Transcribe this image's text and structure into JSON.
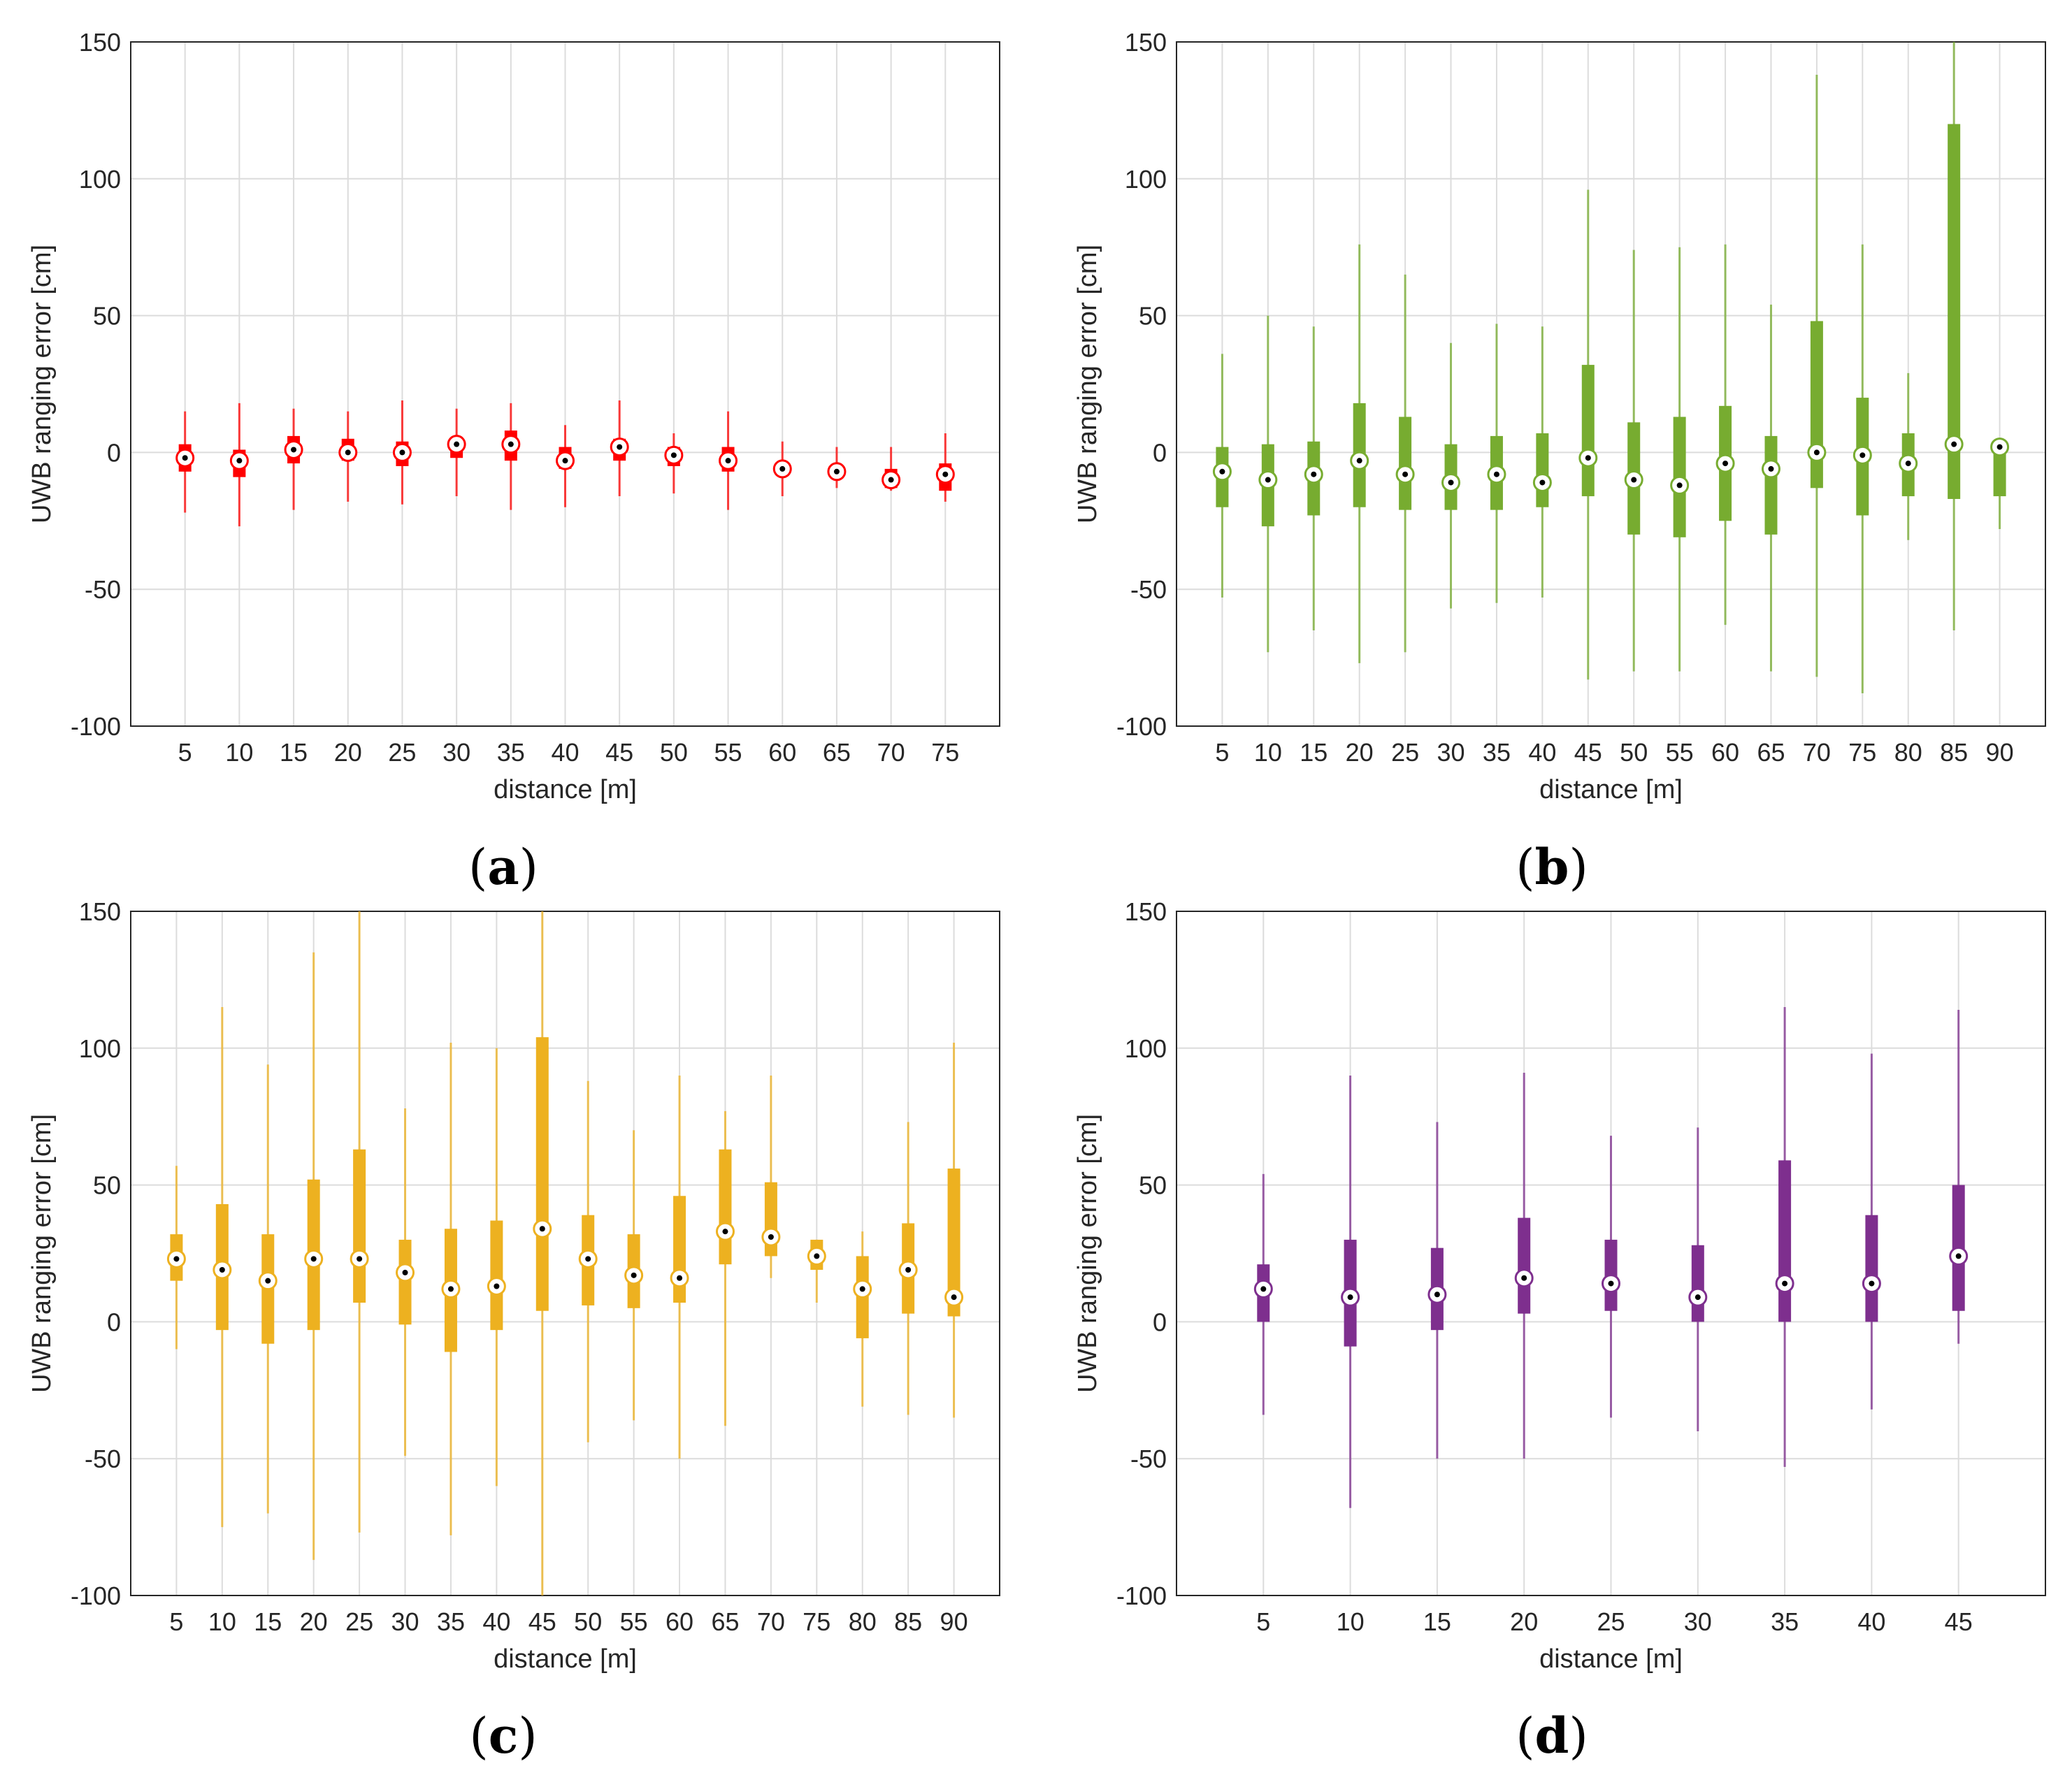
{
  "chart_data": [
    {
      "id": "a",
      "caption": "a",
      "type": "boxplot",
      "color": "#ff0000",
      "xlabel": "distance [m]",
      "ylabel": "UWB ranging error [cm]",
      "ylim": [
        -100,
        150
      ],
      "yticks": [
        -100,
        -50,
        0,
        50,
        100,
        150
      ],
      "grid": true,
      "boxes": [
        {
          "x": "5",
          "min": -22,
          "q1": -7,
          "median": -2,
          "q3": 3,
          "max": 15
        },
        {
          "x": "10",
          "min": -27,
          "q1": -9,
          "median": -3,
          "q3": 1,
          "max": 18
        },
        {
          "x": "15",
          "min": -21,
          "q1": -4,
          "median": 1,
          "q3": 6,
          "max": 16
        },
        {
          "x": "20",
          "min": -18,
          "q1": -3,
          "median": 0,
          "q3": 5,
          "max": 15
        },
        {
          "x": "25",
          "min": -19,
          "q1": -5,
          "median": 0,
          "q3": 4,
          "max": 19
        },
        {
          "x": "30",
          "min": -16,
          "q1": -2,
          "median": 3,
          "q3": 5,
          "max": 16
        },
        {
          "x": "35",
          "min": -21,
          "q1": -3,
          "median": 3,
          "q3": 8,
          "max": 18
        },
        {
          "x": "40",
          "min": -20,
          "q1": -6,
          "median": -3,
          "q3": 2,
          "max": 10
        },
        {
          "x": "45",
          "min": -16,
          "q1": -3,
          "median": 2,
          "q3": 5,
          "max": 19
        },
        {
          "x": "50",
          "min": -15,
          "q1": -5,
          "median": -1,
          "q3": 2,
          "max": 7
        },
        {
          "x": "55",
          "min": -21,
          "q1": -7,
          "median": -3,
          "q3": 2,
          "max": 15
        },
        {
          "x": "60",
          "min": -16,
          "q1": -8,
          "median": -6,
          "q3": -4,
          "max": 4
        },
        {
          "x": "65",
          "min": -13,
          "q1": -9,
          "median": -7,
          "q3": -5,
          "max": 2
        },
        {
          "x": "70",
          "min": -14,
          "q1": -13,
          "median": -10,
          "q3": -6,
          "max": 2
        },
        {
          "x": "75",
          "min": -18,
          "q1": -14,
          "median": -8,
          "q3": -4,
          "max": 7
        }
      ]
    },
    {
      "id": "b",
      "caption": "b",
      "type": "boxplot",
      "color": "#77ac30",
      "xlabel": "distance [m]",
      "ylabel": "UWB ranging error [cm]",
      "ylim": [
        -100,
        150
      ],
      "yticks": [
        -100,
        -50,
        0,
        50,
        100,
        150
      ],
      "grid": true,
      "boxes": [
        {
          "x": "5",
          "min": -53,
          "q1": -20,
          "median": -7,
          "q3": 2,
          "max": 36
        },
        {
          "x": "10",
          "min": -73,
          "q1": -27,
          "median": -10,
          "q3": 3,
          "max": 50
        },
        {
          "x": "15",
          "min": -65,
          "q1": -23,
          "median": -8,
          "q3": 4,
          "max": 46
        },
        {
          "x": "20",
          "min": -77,
          "q1": -20,
          "median": -3,
          "q3": 18,
          "max": 76
        },
        {
          "x": "25",
          "min": -73,
          "q1": -21,
          "median": -8,
          "q3": 13,
          "max": 65
        },
        {
          "x": "30",
          "min": -57,
          "q1": -21,
          "median": -11,
          "q3": 3,
          "max": 40
        },
        {
          "x": "35",
          "min": -55,
          "q1": -21,
          "median": -8,
          "q3": 6,
          "max": 47
        },
        {
          "x": "40",
          "min": -53,
          "q1": -20,
          "median": -11,
          "q3": 7,
          "max": 46
        },
        {
          "x": "45",
          "min": -83,
          "q1": -16,
          "median": -2,
          "q3": 32,
          "max": 96
        },
        {
          "x": "50",
          "min": -80,
          "q1": -30,
          "median": -10,
          "q3": 11,
          "max": 74
        },
        {
          "x": "55",
          "min": -80,
          "q1": -31,
          "median": -12,
          "q3": 13,
          "max": 75
        },
        {
          "x": "60",
          "min": -63,
          "q1": -25,
          "median": -4,
          "q3": 17,
          "max": 76
        },
        {
          "x": "65",
          "min": -80,
          "q1": -30,
          "median": -6,
          "q3": 6,
          "max": 54
        },
        {
          "x": "70",
          "min": -82,
          "q1": -13,
          "median": 0,
          "q3": 48,
          "max": 138
        },
        {
          "x": "75",
          "min": -88,
          "q1": -23,
          "median": -1,
          "q3": 20,
          "max": 76
        },
        {
          "x": "80",
          "min": -32,
          "q1": -16,
          "median": -4,
          "q3": 7,
          "max": 29
        },
        {
          "x": "85",
          "min": -65,
          "q1": -17,
          "median": 3,
          "q3": 120,
          "max": 150
        },
        {
          "x": "90",
          "min": -28,
          "q1": -16,
          "median": 2,
          "q3": 2,
          "max": 2
        }
      ]
    },
    {
      "id": "c",
      "caption": "c",
      "type": "boxplot",
      "color": "#edb120",
      "xlabel": "distance [m]",
      "ylabel": "UWB ranging error [cm]",
      "ylim": [
        -100,
        150
      ],
      "yticks": [
        -100,
        -50,
        0,
        50,
        100,
        150
      ],
      "grid": true,
      "boxes": [
        {
          "x": "5",
          "min": -10,
          "q1": 15,
          "median": 23,
          "q3": 32,
          "max": 57
        },
        {
          "x": "10",
          "min": -75,
          "q1": -3,
          "median": 19,
          "q3": 43,
          "max": 115
        },
        {
          "x": "15",
          "min": -70,
          "q1": -8,
          "median": 15,
          "q3": 32,
          "max": 94
        },
        {
          "x": "20",
          "min": -87,
          "q1": -3,
          "median": 23,
          "q3": 52,
          "max": 135
        },
        {
          "x": "25",
          "min": -77,
          "q1": 7,
          "median": 23,
          "q3": 63,
          "max": 150
        },
        {
          "x": "30",
          "min": -49,
          "q1": -1,
          "median": 18,
          "q3": 30,
          "max": 78
        },
        {
          "x": "35",
          "min": -78,
          "q1": -11,
          "median": 12,
          "q3": 34,
          "max": 102
        },
        {
          "x": "40",
          "min": -60,
          "q1": -3,
          "median": 13,
          "q3": 37,
          "max": 100
        },
        {
          "x": "45",
          "min": -100,
          "q1": 4,
          "median": 34,
          "q3": 104,
          "max": 150
        },
        {
          "x": "50",
          "min": -44,
          "q1": 6,
          "median": 23,
          "q3": 39,
          "max": 88
        },
        {
          "x": "55",
          "min": -36,
          "q1": 5,
          "median": 17,
          "q3": 32,
          "max": 70
        },
        {
          "x": "60",
          "min": -50,
          "q1": 7,
          "median": 16,
          "q3": 46,
          "max": 90
        },
        {
          "x": "65",
          "min": -38,
          "q1": 21,
          "median": 33,
          "q3": 63,
          "max": 77
        },
        {
          "x": "70",
          "min": 16,
          "q1": 24,
          "median": 31,
          "q3": 51,
          "max": 90
        },
        {
          "x": "75",
          "min": 7,
          "q1": 19,
          "median": 24,
          "q3": 30,
          "max": 30
        },
        {
          "x": "80",
          "min": -31,
          "q1": -6,
          "median": 12,
          "q3": 24,
          "max": 33
        },
        {
          "x": "85",
          "min": -34,
          "q1": 3,
          "median": 19,
          "q3": 36,
          "max": 73
        },
        {
          "x": "90",
          "min": -35,
          "q1": 2,
          "median": 9,
          "q3": 56,
          "max": 102
        }
      ]
    },
    {
      "id": "d",
      "caption": "d",
      "type": "boxplot",
      "color": "#7e2f8e",
      "xlabel": "distance [m]",
      "ylabel": "UWB ranging error [cm]",
      "ylim": [
        -100,
        150
      ],
      "yticks": [
        -100,
        -50,
        0,
        50,
        100,
        150
      ],
      "grid": true,
      "boxes": [
        {
          "x": "5",
          "min": -34,
          "q1": 0,
          "median": 12,
          "q3": 21,
          "max": 54
        },
        {
          "x": "10",
          "min": -68,
          "q1": -9,
          "median": 9,
          "q3": 30,
          "max": 90
        },
        {
          "x": "15",
          "min": -50,
          "q1": -3,
          "median": 10,
          "q3": 27,
          "max": 73
        },
        {
          "x": "20",
          "min": -50,
          "q1": 3,
          "median": 16,
          "q3": 38,
          "max": 91
        },
        {
          "x": "25",
          "min": -35,
          "q1": 4,
          "median": 14,
          "q3": 30,
          "max": 68
        },
        {
          "x": "30",
          "min": -40,
          "q1": 0,
          "median": 9,
          "q3": 28,
          "max": 71
        },
        {
          "x": "35",
          "min": -53,
          "q1": 0,
          "median": 14,
          "q3": 59,
          "max": 115
        },
        {
          "x": "40",
          "min": -32,
          "q1": 0,
          "median": 14,
          "q3": 39,
          "max": 98
        },
        {
          "x": "45",
          "min": -8,
          "q1": 4,
          "median": 24,
          "q3": 50,
          "max": 114
        }
      ]
    }
  ]
}
